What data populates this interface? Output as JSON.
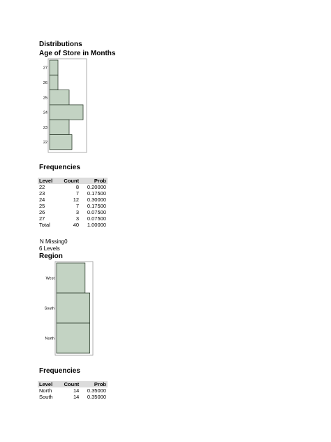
{
  "page": {
    "title": "Distributions"
  },
  "age_section": {
    "heading": "Age of Store in Months",
    "freq_heading": "Frequencies",
    "columns": [
      "Level",
      "Count",
      "Prob"
    ],
    "rows": [
      {
        "level": "22",
        "count": "8",
        "prob": "0.20000"
      },
      {
        "level": "23",
        "count": "7",
        "prob": "0.17500"
      },
      {
        "level": "24",
        "count": "12",
        "prob": "0.30000"
      },
      {
        "level": "25",
        "count": "7",
        "prob": "0.17500"
      },
      {
        "level": "26",
        "count": "3",
        "prob": "0.07500"
      },
      {
        "level": "27",
        "count": "3",
        "prob": "0.07500"
      },
      {
        "level": "Total",
        "count": "40",
        "prob": "1.00000"
      }
    ],
    "n_missing": "N Missing0",
    "levels": "6 Levels"
  },
  "region_section": {
    "heading": "Region",
    "freq_heading": "Frequencies",
    "columns": [
      "Level",
      "Count",
      "Prob"
    ],
    "rows": [
      {
        "level": "North",
        "count": "14",
        "prob": "0.35000"
      },
      {
        "level": "South",
        "count": "14",
        "prob": "0.35000"
      }
    ]
  },
  "colors": {
    "bar_fill": "#c3d3c3",
    "bar_stroke": "#2f3f2f",
    "frame": "#999999"
  },
  "chart_data": [
    {
      "type": "bar",
      "orientation": "horizontal",
      "categories": [
        "27",
        "26",
        "25",
        "24",
        "23",
        "22"
      ],
      "values": [
        3,
        3,
        7,
        12,
        7,
        8
      ],
      "xlim": [
        0,
        14
      ]
    },
    {
      "type": "bar",
      "orientation": "horizontal",
      "categories": [
        "West",
        "South",
        "North"
      ],
      "values": [
        12,
        14,
        14
      ],
      "xlim": [
        0,
        15
      ]
    }
  ]
}
